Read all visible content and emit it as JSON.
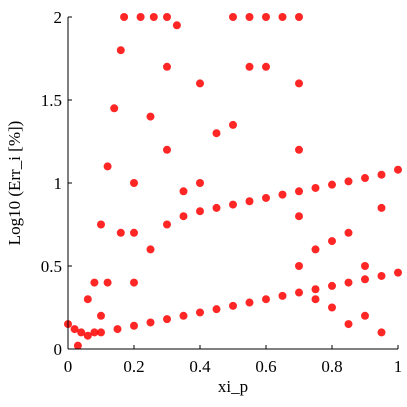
{
  "chart_data": {
    "type": "scatter",
    "x_label": "xi_p",
    "y_label": "Log10 (Err_i [%])",
    "color": "#ff0000",
    "x": [
      0.1,
      0.15,
      0.2,
      0.25,
      0.3,
      0.35,
      0.4,
      0.45,
      0.5,
      0.55,
      0.6,
      0.65,
      0.7,
      0.75,
      0.8,
      0.85,
      0.9,
      0.95,
      1,
      0.35,
      0.4,
      0.45,
      0.5,
      0.55,
      0.6,
      0.65,
      0.7,
      0.75,
      0.8,
      0.85,
      0.9,
      0.95,
      1,
      0,
      0.02,
      0.04,
      0.06,
      0.08,
      0.03,
      0.08,
      0.1,
      0.12,
      0.14,
      0.16,
      0.17,
      0.12,
      0.16,
      0.2,
      0.25,
      0.3,
      0.33,
      0.22,
      0.26,
      0.3,
      0.1,
      0.2,
      0.3,
      0.4,
      0.5,
      0.2,
      0.3,
      0.4,
      0.5,
      0.6,
      0.7,
      0.25,
      0.35,
      0.45,
      0.55,
      0.55,
      0.6,
      0.65,
      0.7,
      0.7,
      0.7,
      0.7,
      0.75,
      0.8,
      0.85,
      0.9,
      0.95,
      0.9,
      0.95,
      0.85,
      0.8,
      0.75,
      0.06
    ],
    "values": [
      0.1,
      0.12,
      0.14,
      0.16,
      0.18,
      0.2,
      0.22,
      0.24,
      0.26,
      0.28,
      0.3,
      0.32,
      0.34,
      0.36,
      0.38,
      0.4,
      0.42,
      0.44,
      0.46,
      0.8,
      0.83,
      0.85,
      0.87,
      0.89,
      0.91,
      0.93,
      0.95,
      0.97,
      0.99,
      1.01,
      1.03,
      1.05,
      1.08,
      0.15,
      0.12,
      0.1,
      0.08,
      0.1,
      0.02,
      0.4,
      0.75,
      1.1,
      1.45,
      1.8,
      2,
      0.4,
      0.7,
      1,
      1.4,
      1.7,
      1.95,
      2,
      2,
      2,
      0.2,
      0.7,
      1.2,
      1.6,
      2,
      0.4,
      0.75,
      1,
      1.35,
      1.7,
      2,
      0.6,
      0.95,
      1.3,
      1.7,
      2,
      2,
      2,
      1.6,
      1.2,
      0.8,
      0.5,
      0.3,
      0.65,
      0.7,
      0.5,
      0.85,
      0.2,
      0.1,
      0.15,
      0.25,
      0.6,
      0.3
    ],
    "xlim": [
      0,
      1
    ],
    "ylim": [
      0,
      2
    ],
    "xticks": [
      0,
      0.2,
      0.4,
      0.6,
      0.8,
      1
    ],
    "yticks": [
      0,
      0.5,
      1,
      1.5,
      2
    ]
  }
}
